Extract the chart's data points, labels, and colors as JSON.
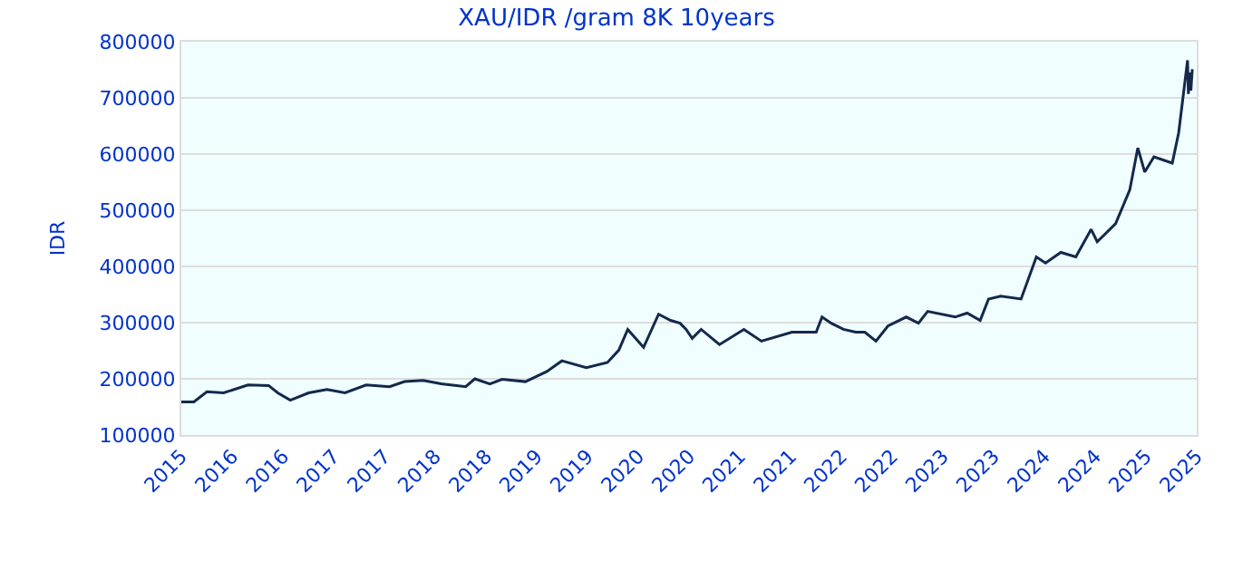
{
  "chart_data": {
    "type": "line",
    "title": "XAU/IDR /gram 8K 10years",
    "ylabel": "IDR",
    "x": [
      "2015-10-01",
      "2015-11-15",
      "2016-01-01",
      "2016-03-01",
      "2016-05-28",
      "2016-08-10",
      "2016-09-12",
      "2016-10-27",
      "2017-01-01",
      "2017-03-08",
      "2017-05-12",
      "2017-07-27",
      "2017-10-19",
      "2017-12-12",
      "2018-02-17",
      "2018-04-23",
      "2018-07-20",
      "2018-08-22",
      "2018-10-15",
      "2018-11-28",
      "2019-02-20",
      "2019-05-08",
      "2019-07-01",
      "2019-09-27",
      "2019-12-12",
      "2020-01-22",
      "2020-02-23",
      "2020-03-17",
      "2020-04-20",
      "2020-06-13",
      "2020-07-26",
      "2020-08-29",
      "2020-09-20",
      "2020-10-12",
      "2020-11-13",
      "2021-01-18",
      "2021-04-16",
      "2021-06-18",
      "2021-10-06",
      "2022-01-01",
      "2022-01-22",
      "2022-02-24",
      "2022-04-09",
      "2022-05-23",
      "2022-06-25",
      "2022-08-04",
      "2022-09-16",
      "2022-11-21",
      "2023-01-04",
      "2023-02-06",
      "2023-05-16",
      "2023-06-28",
      "2023-08-14",
      "2023-09-13",
      "2023-10-27",
      "2024-01-08",
      "2024-03-03",
      "2024-04-05",
      "2024-05-30",
      "2024-07-23",
      "2024-09-16",
      "2024-10-08",
      "2024-12-13",
      "2025-02-02",
      "2025-03-03",
      "2025-03-28",
      "2025-04-30",
      "2025-07-05",
      "2025-07-28",
      "2025-08-29",
      "2025-09-01",
      "2025-09-06",
      "2025-09-10",
      "2025-09-15"
    ],
    "series": [
      {
        "color": "#14284b",
        "values": [
          159000,
          159000,
          177000,
          175000,
          189000,
          188000,
          175000,
          162000,
          175000,
          181000,
          175000,
          189000,
          186000,
          195000,
          197000,
          191000,
          186000,
          200000,
          191000,
          199000,
          195000,
          213000,
          232000,
          220000,
          229000,
          251000,
          288000,
          275000,
          256000,
          315000,
          304000,
          299000,
          288000,
          272000,
          288000,
          261000,
          288000,
          267000,
          283000,
          283000,
          310000,
          299000,
          288000,
          283000,
          283000,
          267000,
          294000,
          310000,
          299000,
          320000,
          310000,
          317000,
          304000,
          342000,
          347000,
          342000,
          417000,
          406000,
          425000,
          417000,
          466000,
          444000,
          476000,
          536000,
          611000,
          568000,
          595000,
          584000,
          638000,
          767000,
          707000,
          745000,
          713000,
          751000
        ]
      }
    ],
    "ylim": [
      100000,
      800000
    ],
    "yticks": [
      100000,
      200000,
      300000,
      400000,
      500000,
      600000,
      700000,
      800000
    ],
    "xlim": [
      "2015-10-01",
      "2025-10-01"
    ],
    "xticks": [
      {
        "value": "2015-10-01",
        "label": "2015"
      },
      {
        "value": "2016-04-01",
        "label": "2016"
      },
      {
        "value": "2016-10-01",
        "label": "2016"
      },
      {
        "value": "2017-04-01",
        "label": "2017"
      },
      {
        "value": "2017-10-01",
        "label": "2017"
      },
      {
        "value": "2018-04-01",
        "label": "2018"
      },
      {
        "value": "2018-10-01",
        "label": "2018"
      },
      {
        "value": "2019-04-01",
        "label": "2019"
      },
      {
        "value": "2019-10-01",
        "label": "2019"
      },
      {
        "value": "2020-04-01",
        "label": "2020"
      },
      {
        "value": "2020-10-01",
        "label": "2020"
      },
      {
        "value": "2021-04-01",
        "label": "2021"
      },
      {
        "value": "2021-10-01",
        "label": "2021"
      },
      {
        "value": "2022-04-01",
        "label": "2022"
      },
      {
        "value": "2022-10-01",
        "label": "2022"
      },
      {
        "value": "2023-04-01",
        "label": "2023"
      },
      {
        "value": "2023-10-01",
        "label": "2023"
      },
      {
        "value": "2024-04-01",
        "label": "2024"
      },
      {
        "value": "2024-10-01",
        "label": "2024"
      },
      {
        "value": "2025-04-01",
        "label": "2025"
      },
      {
        "value": "2025-10-01",
        "label": "2025"
      }
    ],
    "grid": "y",
    "marker": "none",
    "line_style": "solid"
  }
}
